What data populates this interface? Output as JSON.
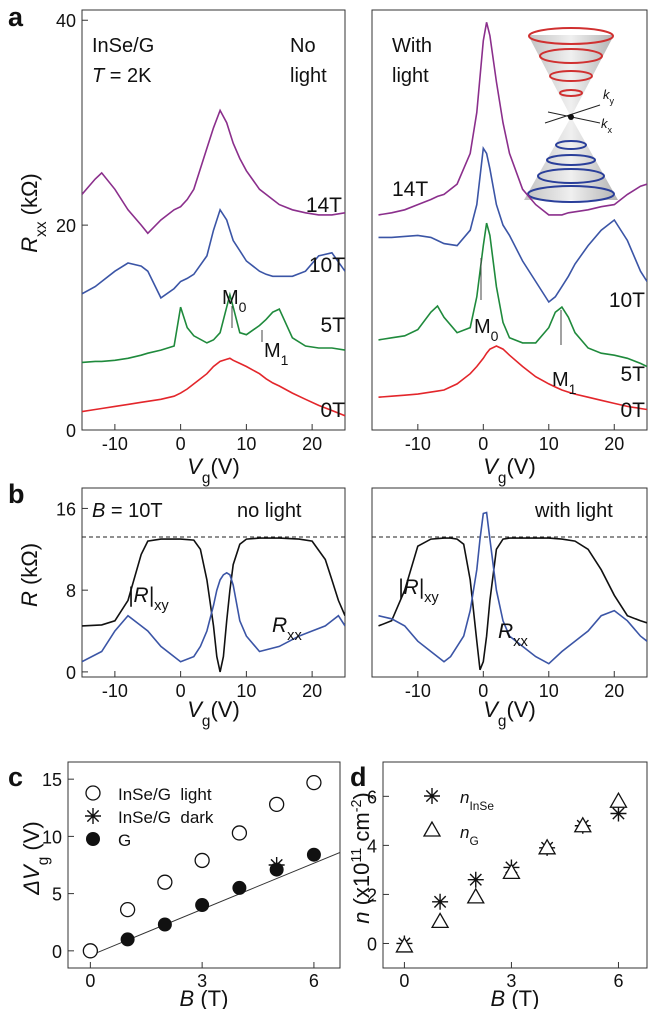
{
  "chart_data": [
    {
      "type": "line",
      "panel": "a",
      "x": [
        -15,
        -13,
        -12,
        -10,
        -8,
        -6,
        -5,
        -3,
        -1,
        0,
        1,
        2,
        4,
        5,
        6,
        7,
        7.5,
        8,
        9,
        10,
        12,
        13,
        14,
        15,
        17,
        19,
        21,
        23,
        25
      ],
      "series": [
        {
          "name": "14T",
          "color": "#8b2f8c",
          "values": [
            23.0,
            24.5,
            25.1,
            23.5,
            21.5,
            20.0,
            19.2,
            20.5,
            21.5,
            21.8,
            22.5,
            23.5,
            27.5,
            29.5,
            31.2,
            30.0,
            29.0,
            28.0,
            26.5,
            25.3,
            23.5,
            23.0,
            22.5,
            22.0,
            21.5,
            21.2,
            21.0,
            21.0,
            21.2
          ]
        },
        {
          "name": "10T",
          "color": "#3b55a6",
          "values": [
            13.3,
            14.0,
            14.5,
            15.5,
            16.3,
            16.0,
            15.5,
            12.9,
            13.8,
            14.5,
            14.8,
            15.2,
            17.0,
            19.5,
            21.5,
            20.5,
            19.5,
            18.5,
            17.5,
            16.5,
            15.5,
            15.2,
            15.0,
            15.0,
            15.0,
            15.5,
            17.0,
            17.3,
            15.5
          ]
        },
        {
          "name": "5T",
          "color": "#1f8a3c",
          "values": [
            6.6,
            6.7,
            6.7,
            6.8,
            7.0,
            7.3,
            7.5,
            7.8,
            8.2,
            12.0,
            10.0,
            9.2,
            8.5,
            8.8,
            9.5,
            12.0,
            13.2,
            12.0,
            9.5,
            9.3,
            10.2,
            10.8,
            11.5,
            11.8,
            9.0,
            8.2,
            8.0,
            8.0,
            7.8
          ]
        },
        {
          "name": "0T",
          "color": "#e3262b",
          "values": [
            1.8,
            2.0,
            2.1,
            2.3,
            2.5,
            2.7,
            2.8,
            3.0,
            3.3,
            3.6,
            4.0,
            4.5,
            5.5,
            6.2,
            6.7,
            6.9,
            7.0,
            6.8,
            6.5,
            6.2,
            5.5,
            5.0,
            4.6,
            4.3,
            3.6,
            3.0,
            2.4,
            1.9,
            1.4
          ]
        }
      ],
      "annotations": [
        [
          {
            "text": "InSe/G"
          }
        ],
        [
          {
            "text": "T",
            "style": "italic"
          },
          {
            "text": " = 2K"
          }
        ],
        [
          {
            "text": "No"
          }
        ],
        [
          {
            "text": "light"
          }
        ],
        [
          {
            "text": "M"
          },
          {
            "text": "0",
            "style": "sub"
          }
        ],
        [
          {
            "text": "M"
          },
          {
            "text": "1",
            "style": "sub"
          }
        ]
      ],
      "xlabel": [
        {
          "text": "V",
          "style": "italic"
        },
        {
          "text": "g",
          "style": "sub"
        },
        {
          "text": "(V)"
        }
      ],
      "ylabel": [
        {
          "text": "R",
          "style": "italic"
        },
        {
          "text": "xx",
          "style": "sub"
        },
        {
          "text": " (kΩ)"
        }
      ],
      "xlim": [
        -15,
        25
      ],
      "ylim": [
        0,
        41
      ],
      "xticks": [
        -10,
        0,
        10,
        20
      ],
      "yticks": [
        0,
        20,
        40
      ]
    },
    {
      "type": "line",
      "x": [
        -16,
        -14,
        -12,
        -10,
        -8,
        -7,
        -6,
        -4,
        -2,
        -1,
        0,
        0.5,
        1,
        2,
        3,
        4,
        6,
        8,
        10,
        11,
        12,
        13,
        14,
        16,
        18,
        20,
        22,
        24,
        25
      ],
      "series": [
        {
          "name": "14T",
          "color": "#8b2f8c",
          "values": [
            21.0,
            21.2,
            21.5,
            22.0,
            22.5,
            22.8,
            23.0,
            24.0,
            27.0,
            31.0,
            38.0,
            39.8,
            38.5,
            34.0,
            30.0,
            27.0,
            23.5,
            22.0,
            21.0,
            21.0,
            21.0,
            21.2,
            21.3,
            21.5,
            21.8,
            22.0,
            23.0,
            23.8,
            24.0
          ]
        },
        {
          "name": "10T",
          "color": "#3b55a6",
          "values": [
            18.8,
            18.8,
            18.9,
            19.0,
            18.8,
            18.5,
            18.2,
            18.0,
            19.5,
            22.0,
            27.5,
            27.0,
            25.5,
            22.0,
            20.0,
            19.0,
            16.5,
            14.5,
            12.5,
            13.0,
            14.0,
            15.0,
            16.2,
            18.0,
            19.5,
            20.5,
            18.5,
            15.5,
            14.5
          ]
        },
        {
          "name": "5T",
          "color": "#1f8a3c",
          "values": [
            8.8,
            9.0,
            9.2,
            9.8,
            11.5,
            12.1,
            11.0,
            9.5,
            10.0,
            13.0,
            18.0,
            20.2,
            19.0,
            14.0,
            10.5,
            9.0,
            8.5,
            8.5,
            10.0,
            11.5,
            12.0,
            11.0,
            9.5,
            8.0,
            7.5,
            7.3,
            7.0,
            6.5,
            6.2
          ]
        },
        {
          "name": "0T",
          "color": "#e3262b",
          "values": [
            3.2,
            3.3,
            3.4,
            3.5,
            3.7,
            3.8,
            3.9,
            4.5,
            5.5,
            6.2,
            7.0,
            7.5,
            7.9,
            8.2,
            7.9,
            7.3,
            6.2,
            5.2,
            4.5,
            4.2,
            3.9,
            3.7,
            3.5,
            3.2,
            2.9,
            2.6,
            2.3,
            2.1,
            2.0
          ]
        }
      ],
      "annotations": [
        [
          {
            "text": "With"
          }
        ],
        [
          {
            "text": "light"
          }
        ],
        [
          {
            "text": "M"
          },
          {
            "text": "0",
            "style": "sub"
          }
        ],
        [
          {
            "text": "M"
          },
          {
            "text": "1",
            "style": "sub"
          }
        ],
        [
          {
            "text": "k",
            "style": "italic"
          },
          {
            "text": "y",
            "style": "sub"
          }
        ],
        [
          {
            "text": "k",
            "style": "italic"
          },
          {
            "text": "x",
            "style": "sub"
          }
        ]
      ],
      "xlabel": [
        {
          "text": "V",
          "style": "italic"
        },
        {
          "text": "g",
          "style": "sub"
        },
        {
          "text": "(V)"
        }
      ],
      "xlim": [
        -17,
        25
      ],
      "ylim": [
        0,
        41
      ],
      "xticks": [
        -10,
        0,
        10,
        20
      ]
    },
    {
      "type": "line",
      "panel": "b",
      "x": [
        -15,
        -12,
        -10,
        -8,
        -6,
        -5,
        -3,
        0,
        2,
        3,
        4,
        5,
        5.5,
        6,
        6.5,
        7,
        7.5,
        8,
        9,
        10,
        12,
        15,
        18,
        20,
        22,
        23,
        24,
        25
      ],
      "series": [
        {
          "name": [
            {
              "text": "|R|",
              "style": "italic"
            },
            {
              "text": "xy",
              "style": "sub"
            }
          ],
          "color": "#111111",
          "values": [
            4.5,
            4.6,
            5.0,
            7.0,
            11.5,
            12.8,
            13.0,
            13.0,
            12.9,
            12.0,
            9.0,
            4.5,
            1.5,
            0.0,
            1.5,
            5.0,
            8.0,
            10.5,
            12.5,
            13.0,
            13.1,
            13.1,
            13.0,
            12.8,
            11.0,
            9.0,
            7.0,
            5.5
          ]
        },
        {
          "name": [
            {
              "text": "R",
              "style": "italic"
            },
            {
              "text": "xx",
              "style": "sub"
            }
          ],
          "color": "#3b55a6",
          "values": [
            1.0,
            2.0,
            4.0,
            5.5,
            4.5,
            4.0,
            2.5,
            1.0,
            1.5,
            2.5,
            4.0,
            6.5,
            8.0,
            9.0,
            9.5,
            9.7,
            9.5,
            8.5,
            5.0,
            3.5,
            2.0,
            2.5,
            3.5,
            4.0,
            4.5,
            5.0,
            5.5,
            4.5
          ]
        }
      ],
      "reference_line": 13.2,
      "annotations": [
        [
          {
            "text": "B",
            "style": "italic"
          },
          {
            "text": " = 10T"
          }
        ],
        [
          {
            "text": "no light"
          }
        ]
      ],
      "xlabel": [
        {
          "text": "V",
          "style": "italic"
        },
        {
          "text": "g",
          "style": "sub"
        },
        {
          "text": "(V)"
        }
      ],
      "ylabel": [
        {
          "text": "R",
          "style": "italic"
        },
        {
          "text": " (kΩ)"
        }
      ],
      "xlim": [
        -15,
        25
      ],
      "ylim": [
        -0.5,
        18
      ],
      "xticks": [
        -10,
        0,
        10,
        20
      ],
      "yticks": [
        0,
        8,
        16
      ]
    },
    {
      "type": "line",
      "x": [
        -16,
        -14,
        -12,
        -10,
        -8,
        -6,
        -5,
        -4,
        -3,
        -2,
        -1,
        -0.5,
        0,
        0.5,
        1,
        2,
        3,
        4,
        6,
        8,
        10,
        12,
        14,
        16,
        18,
        20,
        22,
        24,
        25
      ],
      "series": [
        {
          "name": [
            {
              "text": "|R|",
              "style": "italic"
            },
            {
              "text": "xy",
              "style": "sub"
            }
          ],
          "color": "#111111",
          "values": [
            4.5,
            5.0,
            8.0,
            12.3,
            13.0,
            13.1,
            13.1,
            13.0,
            12.5,
            9.0,
            3.0,
            0.2,
            1.0,
            3.5,
            7.0,
            12.0,
            13.0,
            13.1,
            13.1,
            13.1,
            13.1,
            13.0,
            12.8,
            12.0,
            10.0,
            7.5,
            5.5,
            5.0,
            4.8
          ]
        },
        {
          "name": [
            {
              "text": "R",
              "style": "italic"
            },
            {
              "text": "xx",
              "style": "sub"
            }
          ],
          "color": "#3b55a6",
          "values": [
            5.5,
            5.2,
            4.5,
            3.0,
            2.0,
            1.0,
            1.5,
            2.5,
            3.5,
            6.0,
            10.0,
            13.0,
            15.5,
            15.6,
            13.0,
            8.0,
            5.0,
            3.5,
            2.5,
            1.5,
            0.8,
            2.0,
            3.0,
            4.0,
            5.5,
            6.0,
            5.0,
            3.5,
            3.0
          ]
        }
      ],
      "reference_line": 13.2,
      "annotations": [
        [
          {
            "text": "with light"
          }
        ]
      ],
      "xlabel": [
        {
          "text": "V",
          "style": "italic"
        },
        {
          "text": "g",
          "style": "sub"
        },
        {
          "text": "(V)"
        }
      ],
      "xlim": [
        -17,
        25
      ],
      "ylim": [
        -0.5,
        18
      ],
      "xticks": [
        -10,
        0,
        10,
        20
      ]
    },
    {
      "type": "scatter",
      "panel": "c",
      "series": [
        {
          "name": "InSe/G  light",
          "marker": "circle-open",
          "color": "#111111",
          "x": [
            0,
            1,
            2,
            3,
            4,
            5,
            6
          ],
          "y": [
            0,
            3.6,
            6.0,
            7.9,
            10.3,
            12.8,
            14.7
          ]
        },
        {
          "name": "InSe/G  dark",
          "marker": "asterisk",
          "color": "#111111",
          "x": [
            5
          ],
          "y": [
            7.5
          ]
        },
        {
          "name": "G",
          "marker": "circle-filled",
          "color": "#111111",
          "x": [
            1,
            2,
            3,
            4,
            5,
            6
          ],
          "y": [
            1.0,
            2.3,
            4.0,
            5.5,
            7.1,
            8.4
          ]
        }
      ],
      "fit": {
        "x": [
          0,
          6.7
        ],
        "y": [
          -0.4,
          8.6
        ]
      },
      "xlabel": [
        {
          "text": "B",
          "style": "italic"
        },
        {
          "text": " (T)"
        }
      ],
      "ylabel": [
        {
          "text": "ΔV",
          "style": "italic"
        },
        {
          "text": "g",
          "style": "sub"
        },
        {
          "text": " (V)"
        }
      ],
      "xlim": [
        -0.6,
        6.7
      ],
      "ylim": [
        -1.5,
        16.5
      ],
      "xticks": [
        0,
        3,
        6
      ],
      "yticks": [
        0,
        5,
        10,
        15
      ]
    },
    {
      "type": "scatter",
      "panel": "d",
      "series": [
        {
          "name": [
            {
              "text": "n",
              "style": "italic"
            },
            {
              "text": "InSe",
              "style": "sub"
            }
          ],
          "marker": "asterisk",
          "color": "#111111",
          "x": [
            0,
            1,
            2,
            3,
            4,
            5,
            6
          ],
          "y": [
            0,
            1.7,
            2.6,
            3.1,
            3.9,
            4.8,
            5.3
          ]
        },
        {
          "name": [
            {
              "text": "n",
              "style": "italic"
            },
            {
              "text": "G",
              "style": "sub"
            }
          ],
          "marker": "triangle-open",
          "color": "#111111",
          "x": [
            0,
            1,
            2,
            3,
            4,
            5,
            6
          ],
          "y": [
            -0.1,
            0.9,
            1.9,
            2.9,
            3.9,
            4.8,
            5.8
          ]
        }
      ],
      "xlabel": [
        {
          "text": "B",
          "style": "italic"
        },
        {
          "text": " (T)"
        }
      ],
      "ylabel": [
        {
          "text": "n",
          "style": "italic"
        },
        {
          "text": " (x10"
        },
        {
          "text": "11",
          "style": "sup"
        },
        {
          "text": " cm"
        },
        {
          "text": "-2",
          "style": "sup"
        },
        {
          "text": ")"
        }
      ],
      "xlim": [
        -0.6,
        6.8
      ],
      "ylim": [
        -1,
        7.4
      ],
      "xticks": [
        0,
        3,
        6
      ],
      "yticks": [
        0,
        2,
        4,
        6
      ]
    }
  ]
}
